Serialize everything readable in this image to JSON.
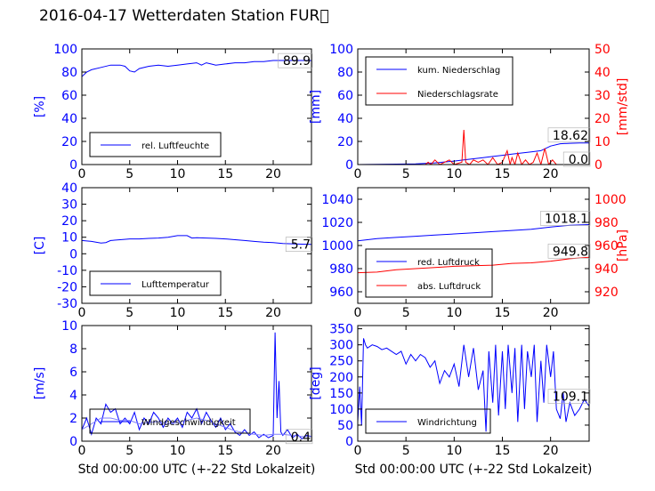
{
  "title": "2016-04-17 Wetterdaten Station FUR\u0000",
  "xlabel": "Std 00:00:00 UTC (+-22 Std Lokalzeit)",
  "chart_data": [
    {
      "id": "humidity",
      "type": "line",
      "ylabel": "[%]",
      "xlim": [
        0,
        24
      ],
      "ylim": [
        0,
        100
      ],
      "xticks": [
        0,
        5,
        10,
        15,
        20
      ],
      "yticks": [
        0,
        20,
        40,
        60,
        80,
        100
      ],
      "legend": [
        "rel. Luftfeuchte"
      ],
      "legend_loc": "lower-left",
      "value_label": "89.9",
      "series": [
        {
          "name": "rel. Luftfeuchte",
          "color": "#0000ff",
          "x": [
            0,
            0.5,
            1,
            2,
            3,
            4,
            4.5,
            5,
            5.5,
            6,
            7,
            8,
            9,
            10,
            11,
            12,
            12.5,
            13,
            13.5,
            14,
            15,
            16,
            17,
            18,
            19,
            20,
            21,
            22,
            23,
            24
          ],
          "y": [
            76,
            80,
            82,
            84,
            86,
            86,
            85,
            81,
            80,
            83,
            85,
            86,
            85,
            86,
            87,
            88,
            86,
            88,
            87,
            86,
            87,
            88,
            88,
            89,
            89,
            90,
            90,
            90,
            90,
            89.9
          ]
        }
      ]
    },
    {
      "id": "precip",
      "type": "line",
      "ylabel": "[mm]",
      "ylabel_right": "[mm/std]",
      "xlim": [
        0,
        24
      ],
      "ylim": [
        0,
        100
      ],
      "ylim_right": [
        0,
        50
      ],
      "xticks": [
        0,
        5,
        10,
        15,
        20
      ],
      "yticks": [
        0,
        20,
        40,
        60,
        80,
        100
      ],
      "yticks_right": [
        0,
        10,
        20,
        30,
        40,
        50
      ],
      "legend": [
        "kum. Niederschlag",
        "Niederschlagsrate"
      ],
      "legend_loc": "upper-left",
      "value_label": "18.62",
      "value_label_right": "0.0",
      "series": [
        {
          "name": "kum. Niederschlag",
          "color": "#0000ff",
          "axis": "left",
          "x": [
            0,
            6,
            8,
            10,
            11,
            12,
            13,
            14,
            15,
            16,
            17,
            18,
            19,
            20,
            21,
            22,
            23,
            24
          ],
          "y": [
            0,
            0.5,
            1.5,
            3,
            4,
            5,
            6,
            7,
            8,
            9,
            10,
            11,
            12,
            16,
            18,
            18.4,
            18.6,
            18.62
          ]
        },
        {
          "name": "Niederschlagsrate",
          "color": "#ff0000",
          "axis": "right",
          "x": [
            0,
            7,
            7.3,
            7.6,
            8,
            8.5,
            9,
            9.5,
            10,
            10.8,
            11,
            11.2,
            11.6,
            12,
            12.5,
            13,
            13.5,
            14,
            14.5,
            15,
            15.5,
            15.8,
            16,
            16.3,
            16.6,
            17,
            17.4,
            17.8,
            18.2,
            18.6,
            19,
            19.4,
            19.8,
            20.2,
            20.6,
            21,
            22,
            23,
            24
          ],
          "y": [
            0,
            0,
            1,
            0,
            2,
            0,
            1,
            2,
            0,
            1,
            15,
            1,
            0,
            2,
            1,
            2,
            0,
            3,
            0,
            1,
            6,
            0,
            3,
            0,
            5,
            0,
            2,
            0,
            1,
            5,
            0,
            7,
            0,
            2,
            0,
            0,
            0,
            0,
            0
          ]
        }
      ]
    },
    {
      "id": "temperature",
      "type": "line",
      "ylabel": "[C]",
      "xlim": [
        0,
        24
      ],
      "ylim": [
        -30,
        40
      ],
      "xticks": [
        0,
        5,
        10,
        15,
        20
      ],
      "yticks": [
        -30,
        -20,
        -10,
        0,
        10,
        20,
        30,
        40
      ],
      "legend": [
        "Lufttemperatur"
      ],
      "legend_loc": "lower-left",
      "value_label": "5.7",
      "series": [
        {
          "name": "Lufttemperatur",
          "color": "#0000ff",
          "x": [
            0,
            1,
            2,
            2.5,
            3,
            4,
            5,
            6,
            7,
            8,
            9,
            10,
            10.5,
            11,
            11.5,
            12,
            13,
            14,
            15,
            16,
            17,
            18,
            19,
            20,
            21,
            22,
            23,
            24
          ],
          "y": [
            8,
            7.5,
            6.5,
            6.8,
            8,
            8.5,
            9,
            9,
            9.3,
            9.5,
            10,
            11,
            11,
            11,
            9.5,
            9.7,
            9.5,
            9.3,
            9,
            8.5,
            8,
            7.5,
            7,
            6.8,
            6.2,
            6,
            5.8,
            5.7
          ]
        }
      ]
    },
    {
      "id": "pressure",
      "type": "line",
      "ylabel": "[hPa]",
      "xlim": [
        0,
        24
      ],
      "ylim": [
        950,
        1050
      ],
      "ylim_right": [
        910,
        1010
      ],
      "xticks": [
        0,
        5,
        10,
        15,
        20
      ],
      "yticks": [
        960,
        980,
        1000,
        1020,
        1040
      ],
      "yticks_right": [
        920,
        940,
        960,
        980,
        1000
      ],
      "legend": [
        "red. Luftdruck",
        "abs. Luftdruck"
      ],
      "legend_loc": "lower-left",
      "value_label": "1018.1",
      "value_label_right": "949.8",
      "series": [
        {
          "name": "red. Luftdruck",
          "color": "#0000ff",
          "axis": "left",
          "x": [
            0,
            2,
            4,
            6,
            8,
            10,
            12,
            14,
            16,
            18,
            20,
            22,
            24
          ],
          "y": [
            1004,
            1006,
            1007,
            1008,
            1009,
            1010,
            1011,
            1012,
            1013,
            1014,
            1016,
            1017.5,
            1018.1
          ]
        },
        {
          "name": "abs. Luftdruck",
          "color": "#ff0000",
          "axis": "right",
          "x": [
            0,
            2,
            4,
            6,
            8,
            10,
            12,
            14,
            16,
            18,
            20,
            22,
            24
          ],
          "y": [
            936.5,
            937,
            939,
            940,
            941,
            942,
            942.5,
            943,
            944.5,
            945,
            946.5,
            948.5,
            949.8
          ]
        }
      ]
    },
    {
      "id": "wind",
      "type": "line",
      "ylabel": "[m/s]",
      "xlim": [
        0,
        24
      ],
      "ylim": [
        0,
        10
      ],
      "xticks": [
        0,
        5,
        10,
        15,
        20
      ],
      "yticks": [
        0,
        2,
        4,
        6,
        8,
        10
      ],
      "legend": [
        "Windgeschwindigkeit"
      ],
      "legend_loc": "lower-left",
      "value_label": "0.4",
      "series": [
        {
          "name": "Windgeschwindigkeit",
          "color": "#0000ff",
          "x": [
            0,
            0.5,
            1,
            1.5,
            2,
            2.5,
            3,
            3.5,
            4,
            4.5,
            5,
            5.5,
            6,
            6.5,
            7,
            7.5,
            8,
            8.5,
            9,
            9.5,
            10,
            10.5,
            11,
            11.5,
            12,
            12.5,
            13,
            13.5,
            14,
            14.5,
            15,
            15.5,
            16,
            16.5,
            17,
            17.5,
            18,
            18.5,
            19,
            19.5,
            20,
            20.2,
            20.4,
            20.6,
            20.8,
            21,
            21.5,
            22,
            22.5,
            23,
            23.5,
            24
          ],
          "y": [
            1,
            2,
            0.6,
            2,
            1.5,
            3.2,
            2.5,
            2.8,
            1.5,
            2,
            1.5,
            2.5,
            1,
            2,
            1.5,
            2.5,
            2,
            1.2,
            2,
            1.5,
            2,
            1.2,
            2.5,
            2,
            2.8,
            1.5,
            2.5,
            1.8,
            1.2,
            2,
            1,
            1.5,
            0.8,
            0.5,
            1,
            0.5,
            0.8,
            0.3,
            0.6,
            0.3,
            0.5,
            9.4,
            2,
            5.2,
            0.8,
            0.5,
            1,
            0.3,
            0.6,
            0.2,
            0.5,
            0.4
          ]
        },
        {
          "name": "",
          "color": "#8080ff",
          "x": [
            0,
            1,
            2,
            3,
            4,
            5,
            6,
            7,
            8,
            9,
            10,
            11,
            12,
            13,
            14,
            15,
            16,
            17,
            18,
            19,
            20,
            21,
            22,
            23,
            24
          ],
          "y": [
            1,
            1.5,
            2,
            2,
            1.8,
            1.8,
            1.5,
            1.6,
            1.7,
            1.5,
            1.6,
            1.8,
            2,
            1.8,
            1.5,
            1.2,
            0.9,
            0.7,
            0.6,
            0.5,
            0.6,
            0.6,
            0.5,
            0.4,
            0.4
          ]
        }
      ]
    },
    {
      "id": "winddir",
      "type": "line",
      "ylabel": "[deg]",
      "xlim": [
        0,
        24
      ],
      "ylim": [
        0,
        360
      ],
      "xticks": [
        0,
        5,
        10,
        15,
        20
      ],
      "yticks": [
        0,
        50,
        100,
        150,
        200,
        250,
        300,
        350
      ],
      "legend": [
        "Windrichtung"
      ],
      "legend_loc": "lower-left",
      "value_label": "109.1",
      "series": [
        {
          "name": "Windrichtung",
          "color": "#0000ff",
          "x": [
            0,
            0.2,
            0.4,
            0.6,
            0.8,
            1,
            1.5,
            2,
            2.5,
            3,
            3.5,
            4,
            4.5,
            5,
            5.5,
            6,
            6.5,
            7,
            7.5,
            8,
            8.5,
            9,
            9.5,
            10,
            10.5,
            11,
            11.5,
            12,
            12.5,
            13,
            13.3,
            13.6,
            14,
            14.3,
            14.6,
            15,
            15.3,
            15.6,
            16,
            16.3,
            16.6,
            17,
            17.3,
            17.6,
            18,
            18.3,
            18.6,
            19,
            19.3,
            19.6,
            20,
            20.3,
            20.6,
            21,
            21.3,
            21.6,
            22,
            22.5,
            23,
            23.5,
            24
          ],
          "y": [
            60,
            170,
            50,
            320,
            300,
            290,
            300,
            295,
            285,
            290,
            280,
            270,
            280,
            240,
            270,
            250,
            270,
            260,
            230,
            250,
            180,
            220,
            200,
            240,
            170,
            300,
            200,
            290,
            160,
            220,
            30,
            280,
            120,
            300,
            80,
            280,
            100,
            300,
            150,
            290,
            60,
            300,
            100,
            280,
            200,
            300,
            60,
            250,
            120,
            300,
            200,
            280,
            100,
            70,
            150,
            60,
            120,
            80,
            100,
            130,
            109
          ]
        }
      ]
    }
  ]
}
